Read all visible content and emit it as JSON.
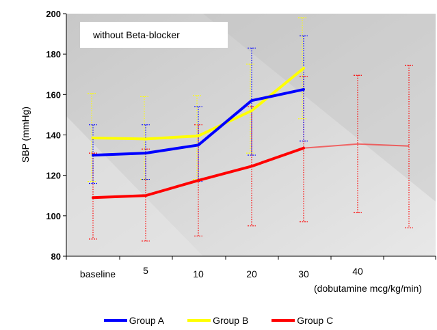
{
  "chart_data": {
    "type": "line",
    "annotation": "without Beta-blocker",
    "ylabel": "SBP (mmHg)",
    "xlabel": "(dobutamine mcg/kg/min)",
    "ylim": [
      80,
      200
    ],
    "yticks": [
      80,
      100,
      120,
      140,
      160,
      180,
      200
    ],
    "categories": [
      "baseline",
      "5",
      "10",
      "20",
      "30",
      "40",
      ""
    ],
    "series": [
      {
        "name": "Group A",
        "color": "#0000ff",
        "values": [
          130,
          131,
          135,
          157,
          162.5,
          null,
          null
        ],
        "err_high": [
          145,
          145,
          154,
          183,
          189,
          null,
          null
        ],
        "err_low": [
          116,
          118,
          117,
          130,
          137,
          null,
          null
        ]
      },
      {
        "name": "Group B",
        "color": "#ffff00",
        "values": [
          138.5,
          138,
          139.5,
          152,
          173,
          null,
          null
        ],
        "err_high": [
          160.5,
          159,
          159.5,
          175,
          198,
          null,
          null
        ],
        "err_low": [
          117,
          118,
          118,
          131,
          148,
          null,
          null
        ]
      },
      {
        "name": "Group C",
        "color": "#ff0000",
        "values": [
          109,
          110,
          117.5,
          124.5,
          133.5,
          135.5,
          134.5
        ],
        "err_high": [
          131,
          133,
          145,
          154,
          169,
          169.5,
          174.5
        ],
        "err_low": [
          88.5,
          87.5,
          90,
          95,
          97,
          101.5,
          94
        ]
      }
    ]
  }
}
